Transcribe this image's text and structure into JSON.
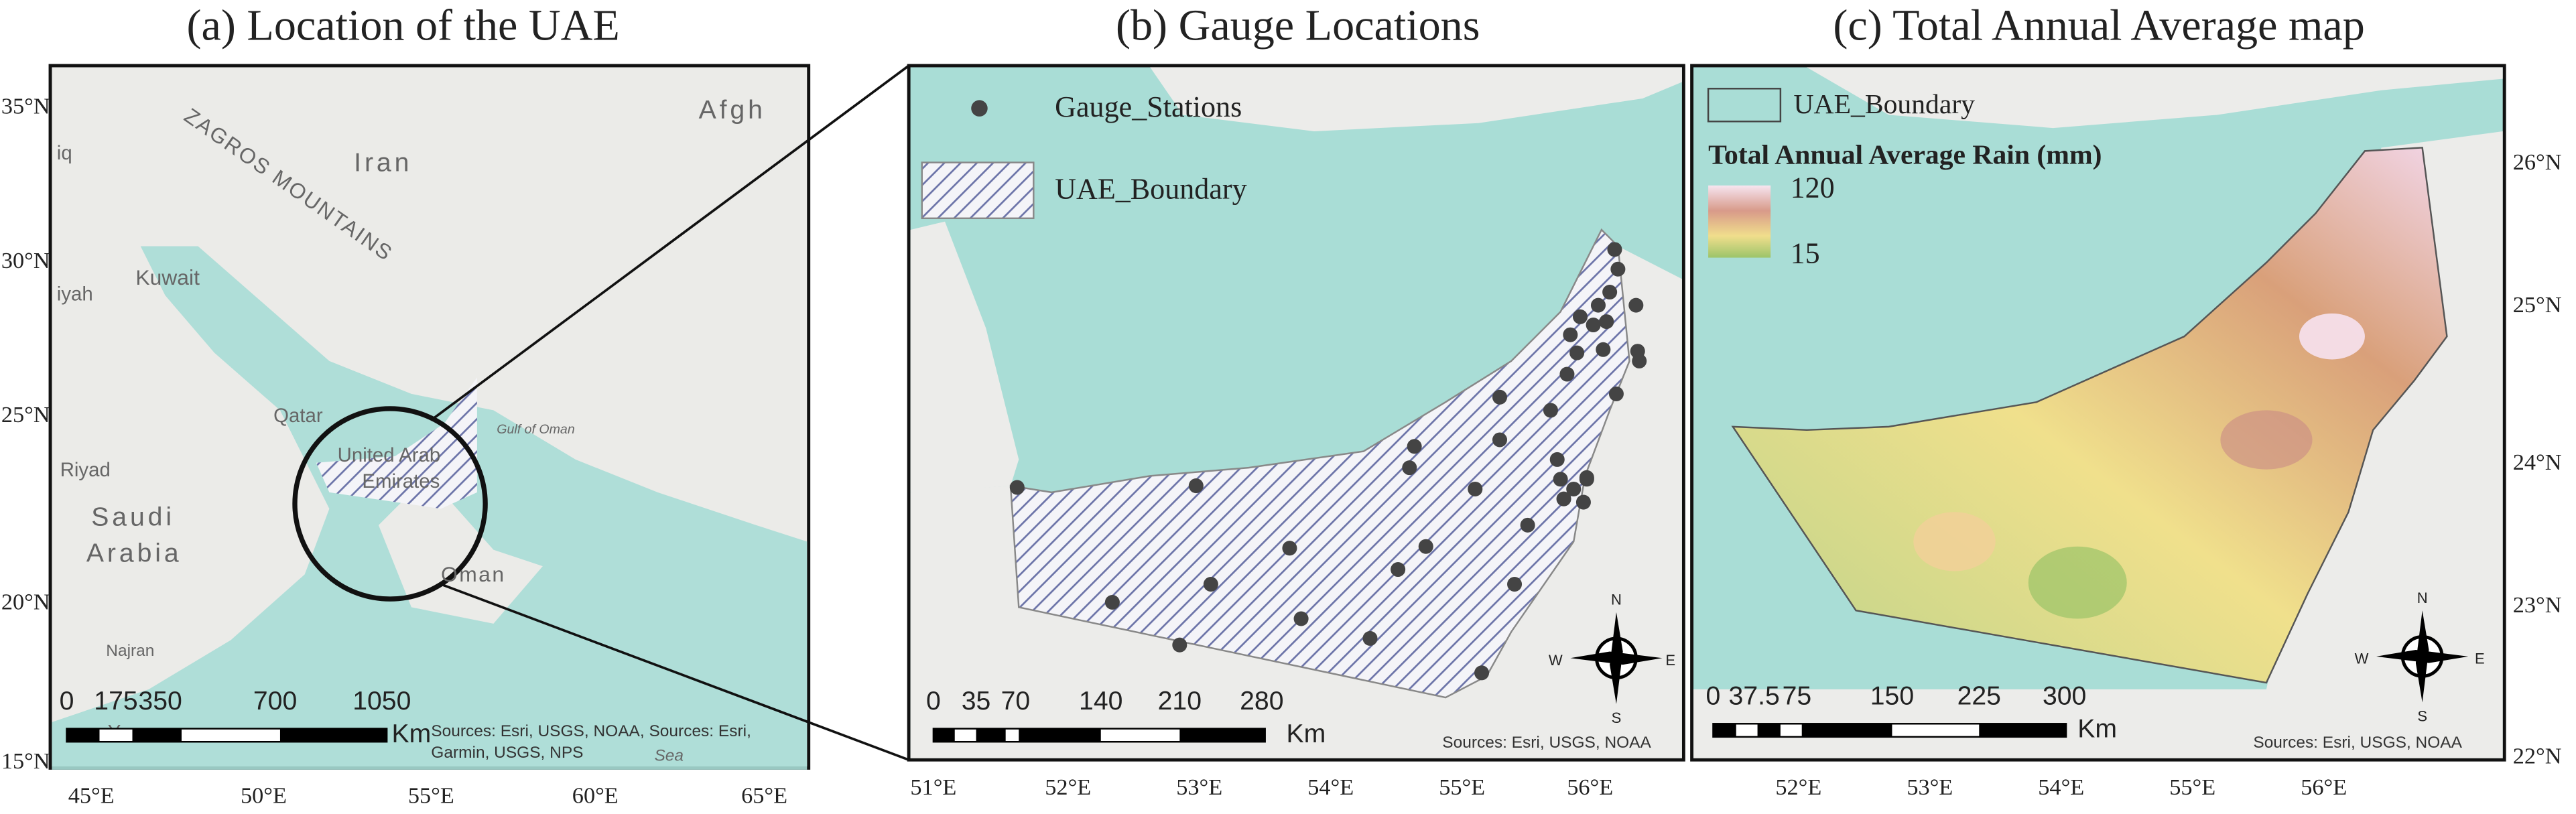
{
  "panels": [
    {
      "title": "(a) Location of the UAE",
      "lat_labels": [
        "35°N",
        "30°N",
        "25°N",
        "20°N",
        "15°N"
      ],
      "lon_labels": [
        "45°E",
        "50°E",
        "55°E",
        "60°E",
        "65°E"
      ],
      "place_labels": [
        "ZAGROS MOUNTAINS",
        "Iran",
        "Afgh",
        "Kuwait",
        "Qatar",
        "Riyad",
        "Saudi",
        "Arabia",
        "United Arab",
        "Emirates",
        "Oman",
        "Najran",
        "Yemen",
        "Gulf of Oman",
        "Sea",
        "iq",
        "iyah"
      ],
      "scale_labels": [
        "0",
        "175",
        "350",
        "700",
        "1050"
      ],
      "scale_unit": "Km",
      "sources": [
        "Sources: Esri, USGS, NOAA, Sources: Esri,",
        "Garmin, USGS, NPS"
      ]
    },
    {
      "title": "(b) Gauge Locations",
      "legend": [
        "Gauge_Stations",
        "UAE_Boundary"
      ],
      "lon_labels": [
        "51°E",
        "52°E",
        "53°E",
        "54°E",
        "55°E",
        "56°E"
      ],
      "scale_labels": [
        "0",
        "35",
        "70",
        "140",
        "210",
        "280"
      ],
      "scale_unit": "Km",
      "sources": "Sources: Esri, USGS, NOAA",
      "compass": [
        "N",
        "S",
        "W",
        "E"
      ]
    },
    {
      "title": "(c) Total Annual Average map",
      "legend": "UAE_Boundary",
      "rain_title": "Total Annual Average Rain (mm)",
      "rain_max": 120,
      "rain_min": 15,
      "lat_labels": [
        "26°N",
        "25°N",
        "24°N",
        "23°N",
        "22°N"
      ],
      "lon_labels": [
        "52°E",
        "53°E",
        "54°E",
        "55°E",
        "56°E"
      ],
      "scale_labels": [
        "0",
        "37.5",
        "75",
        "150",
        "225",
        "300"
      ],
      "scale_unit": "Km",
      "sources": "Sources: Esri, USGS, NOAA",
      "compass": [
        "N",
        "S",
        "W",
        "E"
      ]
    }
  ]
}
